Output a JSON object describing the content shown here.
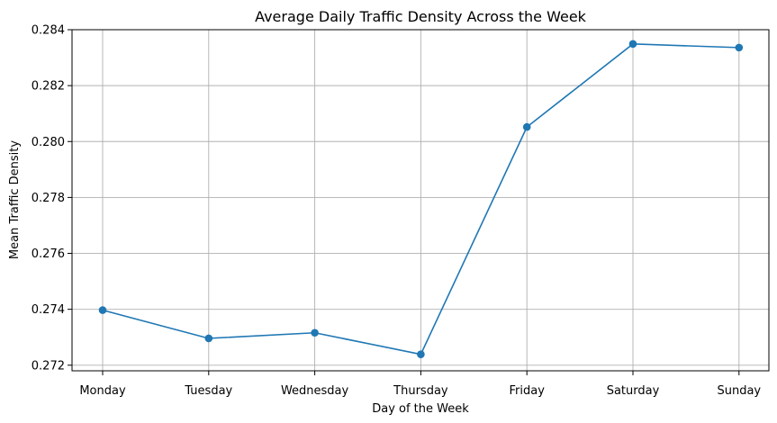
{
  "chart_data": {
    "type": "line",
    "title": "Average Daily Traffic Density Across the Week",
    "xlabel": "Day of the Week",
    "ylabel": "Mean Traffic Density",
    "categories": [
      "Monday",
      "Tuesday",
      "Wednesday",
      "Thursday",
      "Friday",
      "Saturday",
      "Sunday"
    ],
    "series": [
      {
        "values": [
          0.27397,
          0.27296,
          0.27316,
          0.27239,
          0.28052,
          0.28349,
          0.28336
        ],
        "color": "#1f77b4",
        "marker": "circle"
      }
    ],
    "ylim": [
      0.2718,
      0.284
    ],
    "yticks": [
      "0.272",
      "0.274",
      "0.276",
      "0.278",
      "0.280",
      "0.282",
      "0.284"
    ],
    "grid": true
  }
}
